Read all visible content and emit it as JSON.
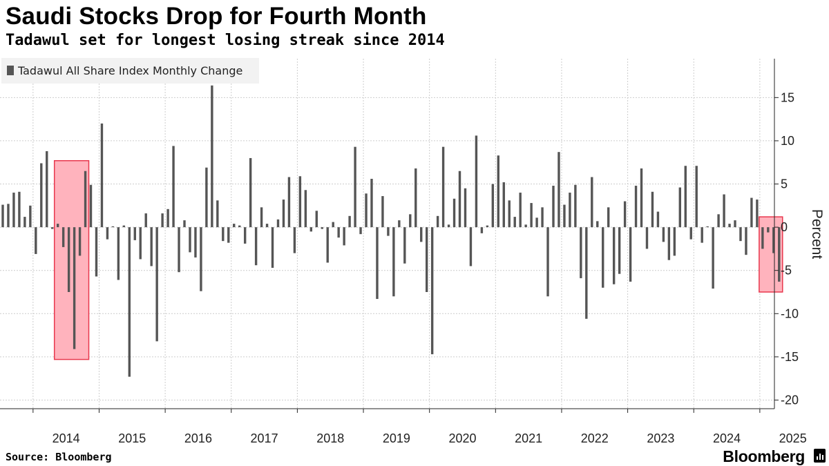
{
  "header": {
    "title": "Saudi Stocks Drop for Fourth Month",
    "subtitle": "Tadawul set for longest losing streak since 2014"
  },
  "footer": {
    "source": "Source: Bloomberg",
    "brand": "Bloomberg"
  },
  "colors": {
    "bar": "#555555",
    "highlight_fill": "#ffb3bd",
    "highlight_stroke": "#e8374d",
    "grid": "#cccccc",
    "legend_bg": "#f2f2f2"
  },
  "chart_data": {
    "type": "bar",
    "title": "Saudi Stocks Drop for Fourth Month",
    "subtitle": "Tadawul set for longest losing streak since 2014",
    "ylabel": "Percent",
    "y_axis_side": "right",
    "ylim": [
      -21,
      19.5
    ],
    "y_ticks": [
      15,
      10,
      5,
      0,
      -5,
      -10,
      -15,
      -20
    ],
    "x_ticks": [
      "2014",
      "2015",
      "2016",
      "2017",
      "2018",
      "2019",
      "2020",
      "2021",
      "2022",
      "2023",
      "2024",
      "2025"
    ],
    "grid": "dotted",
    "legend_position": "top-left",
    "highlight_ranges": [
      {
        "start": "2014-05",
        "end": "2014-10"
      },
      {
        "start": "2025-01",
        "end": "2025-04"
      }
    ],
    "series": [
      {
        "name": "Tadawul All Share Index Monthly Change",
        "start": "2013-07",
        "values": [
          2.6,
          2.7,
          4.0,
          4.1,
          1.2,
          2.5,
          -3.1,
          7.4,
          8.8,
          -0.2,
          0.4,
          -2.3,
          -7.5,
          -14.1,
          -3.3,
          6.5,
          4.9,
          -5.7,
          12.0,
          -1.4,
          0.1,
          -6.1,
          0.2,
          -17.3,
          -1.5,
          -3.7,
          1.6,
          -4.5,
          -13.2,
          1.6,
          2.1,
          9.4,
          -5.2,
          0.8,
          -2.9,
          -3.5,
          -7.4,
          6.9,
          16.4,
          3.1,
          -1.6,
          -1.8,
          0.4,
          0.2,
          -1.9,
          8.0,
          -4.4,
          2.3,
          0.4,
          -4.7,
          0.9,
          3.2,
          5.8,
          -3.0,
          5.9,
          4.3,
          -0.5,
          1.9,
          -0.2,
          -4.1,
          0.6,
          -1.2,
          -2.1,
          1.3,
          9.3,
          -0.8,
          3.9,
          5.6,
          -8.3,
          3.6,
          -1.0,
          -8.0,
          0.8,
          -4.2,
          1.5,
          6.8,
          -1.7,
          -7.5,
          -14.7,
          1.3,
          9.3,
          0.3,
          3.3,
          6.5,
          4.5,
          -4.5,
          10.6,
          -0.7,
          0.2,
          5.0,
          8.3,
          5.2,
          3.1,
          1.2,
          4.0,
          0.3,
          2.8,
          1.1,
          2.3,
          -8.0,
          4.8,
          8.7,
          2.6,
          4.0,
          4.9,
          -5.9,
          -10.6,
          5.8,
          0.7,
          -7.0,
          2.3,
          -6.6,
          -5.4,
          3.0,
          -6.3,
          4.8,
          6.8,
          -2.5,
          4.1,
          1.8,
          -1.7,
          -3.8,
          -3.3,
          4.6,
          7.1,
          -1.4,
          7.1,
          -1.8,
          0.1,
          -7.1,
          1.5,
          3.8,
          0.4,
          0.8,
          -1.6,
          -3.2,
          3.4,
          3.2,
          -2.5,
          -0.6,
          -3.0,
          -6.3
        ]
      }
    ]
  }
}
